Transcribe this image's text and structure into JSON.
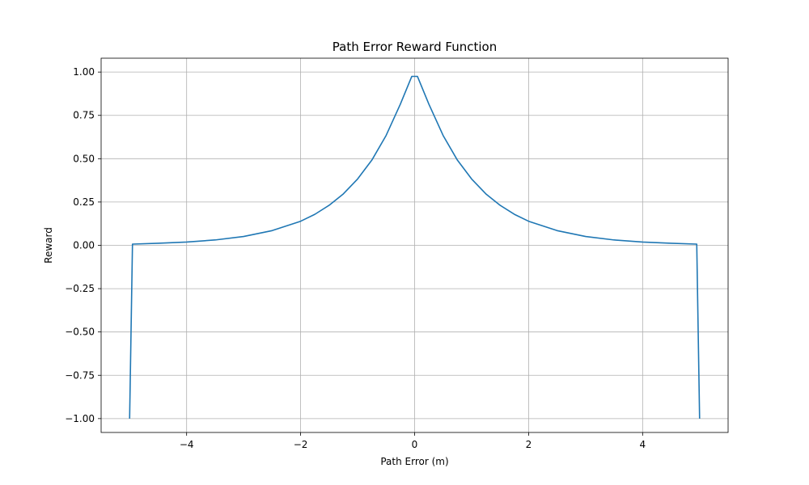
{
  "chart_data": {
    "type": "line",
    "title": "Path Error Reward Function",
    "xlabel": "Path Error (m)",
    "ylabel": "Reward",
    "xlim": [
      -5.5,
      5.5
    ],
    "ylim": [
      -1.08,
      1.08
    ],
    "xticks": [
      -4,
      -2,
      0,
      2,
      4
    ],
    "xtick_labels": [
      "−4",
      "−2",
      "0",
      "2",
      "4"
    ],
    "yticks": [
      -1.0,
      -0.75,
      -0.5,
      -0.25,
      0.0,
      0.25,
      0.5,
      0.75,
      1.0
    ],
    "ytick_labels": [
      "−1.00",
      "−0.75",
      "−0.50",
      "−0.25",
      "0.00",
      "0.25",
      "0.50",
      "0.75",
      "1.00"
    ],
    "grid": true,
    "series": [
      {
        "color": "#1f77b4",
        "x": [
          -5.0,
          -4.95,
          -4.5,
          -4.0,
          -3.5,
          -3.0,
          -2.5,
          -2.0,
          -1.75,
          -1.5,
          -1.25,
          -1.0,
          -0.75,
          -0.5,
          -0.25,
          -0.05,
          0.05,
          0.25,
          0.5,
          0.75,
          1.0,
          1.25,
          1.5,
          1.75,
          2.0,
          2.5,
          3.0,
          3.5,
          4.0,
          4.5,
          4.95,
          5.0
        ],
        "y": [
          -1.0,
          0.007,
          0.012,
          0.019,
          0.031,
          0.051,
          0.085,
          0.139,
          0.179,
          0.231,
          0.297,
          0.383,
          0.492,
          0.634,
          0.815,
          0.975,
          0.975,
          0.815,
          0.634,
          0.492,
          0.383,
          0.297,
          0.231,
          0.179,
          0.139,
          0.085,
          0.051,
          0.031,
          0.019,
          0.012,
          0.007,
          -1.0
        ]
      }
    ]
  }
}
